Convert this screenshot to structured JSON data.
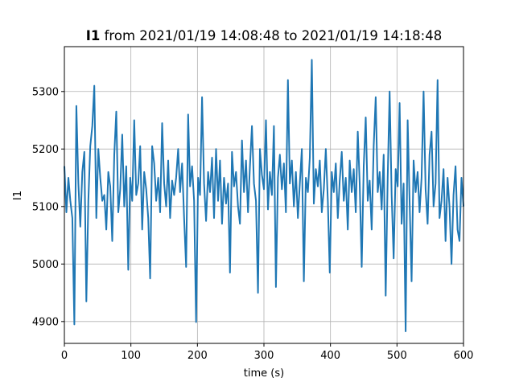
{
  "chart_data": {
    "type": "line",
    "title_bold": "I1",
    "title_rest": "from 2021/01/19 14:08:48 to 2021/01/19 14:18:48",
    "xlabel": "time (s)",
    "ylabel": "I1",
    "xlim": [
      0,
      600
    ],
    "ylim": [
      4862,
      5378
    ],
    "xticks": [
      0,
      100,
      200,
      300,
      400,
      500,
      600
    ],
    "yticks": [
      4900,
      5000,
      5100,
      5200,
      5300
    ],
    "grid": true,
    "series_color": "#1f77b4",
    "series": [
      {
        "x": [
          0,
          3,
          6,
          9,
          12,
          15,
          18,
          21,
          24,
          27,
          30,
          33,
          36,
          39,
          42,
          45,
          48,
          51,
          54,
          57,
          60,
          63,
          66,
          69,
          72,
          75,
          78,
          81,
          84,
          87,
          90,
          93,
          96,
          99,
          102,
          105,
          108,
          111,
          114,
          117,
          120,
          123,
          126,
          129,
          132,
          135,
          138,
          141,
          144,
          147,
          150,
          153,
          156,
          159,
          162,
          165,
          168,
          171,
          174,
          177,
          180,
          183,
          186,
          189,
          192,
          195,
          198,
          201,
          204,
          207,
          210,
          213,
          216,
          219,
          222,
          225,
          228,
          231,
          234,
          237,
          240,
          243,
          246,
          249,
          252,
          255,
          258,
          261,
          264,
          267,
          270,
          273,
          276,
          279,
          282,
          285,
          288,
          291,
          294,
          297,
          300,
          303,
          306,
          309,
          312,
          315,
          318,
          321,
          324,
          327,
          330,
          333,
          336,
          339,
          342,
          345,
          348,
          351,
          354,
          357,
          360,
          363,
          366,
          369,
          372,
          375,
          378,
          381,
          384,
          387,
          390,
          393,
          396,
          399,
          402,
          405,
          408,
          411,
          414,
          417,
          420,
          423,
          426,
          429,
          432,
          435,
          438,
          441,
          444,
          447,
          450,
          453,
          456,
          459,
          462,
          465,
          468,
          471,
          474,
          477,
          480,
          483,
          486,
          489,
          492,
          495,
          498,
          501,
          504,
          507,
          510,
          513,
          516,
          519,
          522,
          525,
          528,
          531,
          534,
          537,
          540,
          543,
          546,
          549,
          552,
          555,
          558,
          561,
          564,
          567,
          570,
          573,
          576,
          579,
          582,
          585,
          588,
          591,
          594,
          597,
          600
        ],
        "y": [
          5170,
          5090,
          5150,
          5110,
          5080,
          4895,
          5275,
          5140,
          5065,
          5160,
          5195,
          4935,
          5110,
          5205,
          5240,
          5310,
          5080,
          5200,
          5150,
          5110,
          5120,
          5060,
          5160,
          5135,
          5040,
          5190,
          5265,
          5090,
          5130,
          5225,
          5100,
          5170,
          4990,
          5150,
          5110,
          5250,
          5120,
          5140,
          5205,
          5060,
          5160,
          5130,
          5080,
          4975,
          5205,
          5175,
          5110,
          5150,
          5090,
          5245,
          5140,
          5100,
          5180,
          5080,
          5145,
          5120,
          5150,
          5200,
          5125,
          5175,
          5080,
          4995,
          5260,
          5135,
          5170,
          5110,
          4899,
          5150,
          5120,
          5290,
          5140,
          5075,
          5160,
          5125,
          5185,
          5080,
          5200,
          5110,
          5180,
          5070,
          5150,
          5105,
          5140,
          4985,
          5195,
          5135,
          5160,
          5100,
          5070,
          5215,
          5125,
          5180,
          5090,
          5170,
          5240,
          5140,
          5110,
          4950,
          5200,
          5155,
          5130,
          5250,
          5095,
          5160,
          5120,
          5240,
          4960,
          5150,
          5190,
          5130,
          5175,
          5090,
          5320,
          5140,
          5180,
          5100,
          5160,
          5080,
          5140,
          5200,
          4970,
          5150,
          5125,
          5185,
          5355,
          5105,
          5165,
          5135,
          5180,
          5090,
          5130,
          5200,
          5110,
          4985,
          5160,
          5125,
          5175,
          5080,
          5145,
          5195,
          5110,
          5150,
          5060,
          5180,
          5125,
          5165,
          5090,
          5230,
          5140,
          4995,
          5170,
          5255,
          5110,
          5145,
          5060,
          5205,
          5290,
          5125,
          5160,
          5095,
          5190,
          4945,
          5150,
          5300,
          5120,
          5010,
          5165,
          5135,
          5280,
          5070,
          5140,
          4883,
          5250,
          5110,
          4970,
          5180,
          5125,
          5160,
          5090,
          5150,
          5300,
          5130,
          5070,
          5190,
          5230,
          5100,
          5140,
          5320,
          5080,
          5110,
          5165,
          5040,
          5150,
          5100,
          5000,
          5120,
          5170,
          5060,
          5040,
          5150,
          5100
        ]
      }
    ]
  }
}
